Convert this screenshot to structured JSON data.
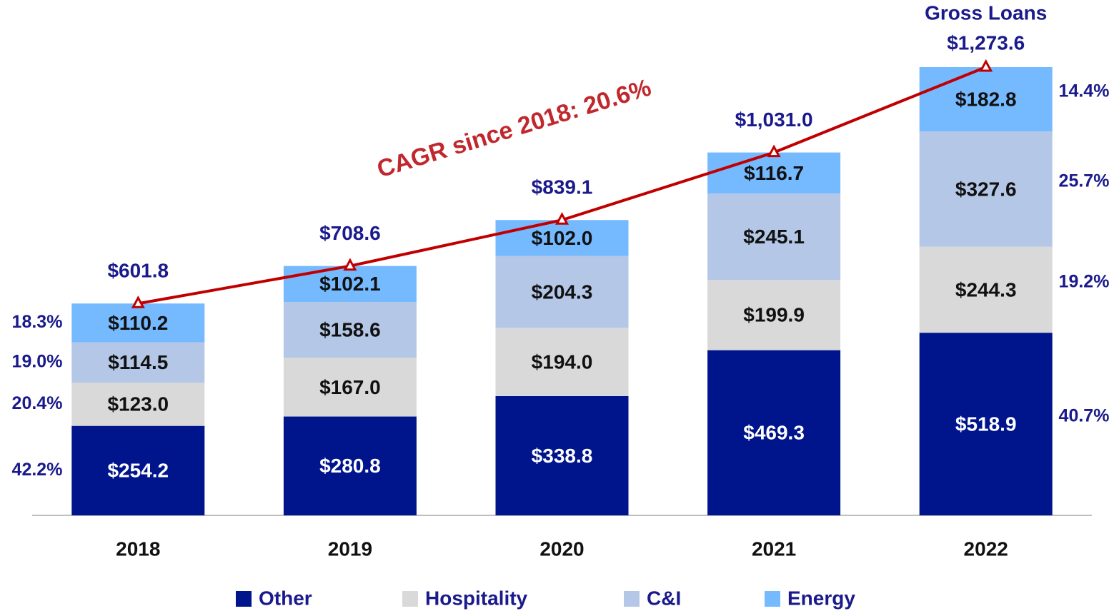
{
  "chart_data": {
    "type": "stacked_bar",
    "categories": [
      "2018",
      "2019",
      "2020",
      "2021",
      "2022"
    ],
    "series": [
      {
        "name": "Other",
        "color": "#00148c",
        "label_color": "#ffffff",
        "values": [
          254.2,
          280.8,
          338.8,
          469.3,
          518.9
        ],
        "value_labels": [
          "$254.2",
          "$280.8",
          "$338.8",
          "$469.3",
          "$518.9"
        ]
      },
      {
        "name": "Hospitality",
        "color": "#d9d9d9",
        "label_color": "#111111",
        "values": [
          123.0,
          167.0,
          194.0,
          199.9,
          244.3
        ],
        "value_labels": [
          "$123.0",
          "$167.0",
          "$194.0",
          "$199.9",
          "$244.3"
        ]
      },
      {
        "name": "C&I",
        "color": "#b4c7e7",
        "label_color": "#111111",
        "values": [
          114.5,
          158.6,
          204.3,
          245.1,
          327.6
        ],
        "value_labels": [
          "$114.5",
          "$158.6",
          "$204.3",
          "$245.1",
          "$327.6"
        ]
      },
      {
        "name": "Energy",
        "color": "#75b9ff",
        "label_color": "#111111",
        "values": [
          110.2,
          102.1,
          102.0,
          116.7,
          182.8
        ],
        "value_labels": [
          "$110.2",
          "$102.1",
          "$102.0",
          "$116.7",
          "$182.8"
        ]
      }
    ],
    "line": {
      "color": "#c00000",
      "label_color": "#1a1a8c",
      "values": [
        601.8,
        708.6,
        839.1,
        1031.0,
        1273.6
      ],
      "value_labels": [
        "$601.8",
        "$708.6",
        "$839.1",
        "$1,031.0",
        "$1,273.6"
      ],
      "last_label": "Gross Loans"
    },
    "annotation": "CAGR since 2018: 20.6%",
    "first_shares": {
      "values": [
        42.2,
        20.4,
        19.0,
        18.3
      ],
      "value_labels": [
        "42.2%",
        "20.4%",
        "19.0%",
        "18.3%"
      ]
    },
    "last_shares": {
      "values": [
        40.7,
        19.2,
        25.7,
        14.4
      ],
      "value_labels": [
        "40.7%",
        "19.2%",
        "25.7%",
        "14.4%"
      ]
    }
  }
}
